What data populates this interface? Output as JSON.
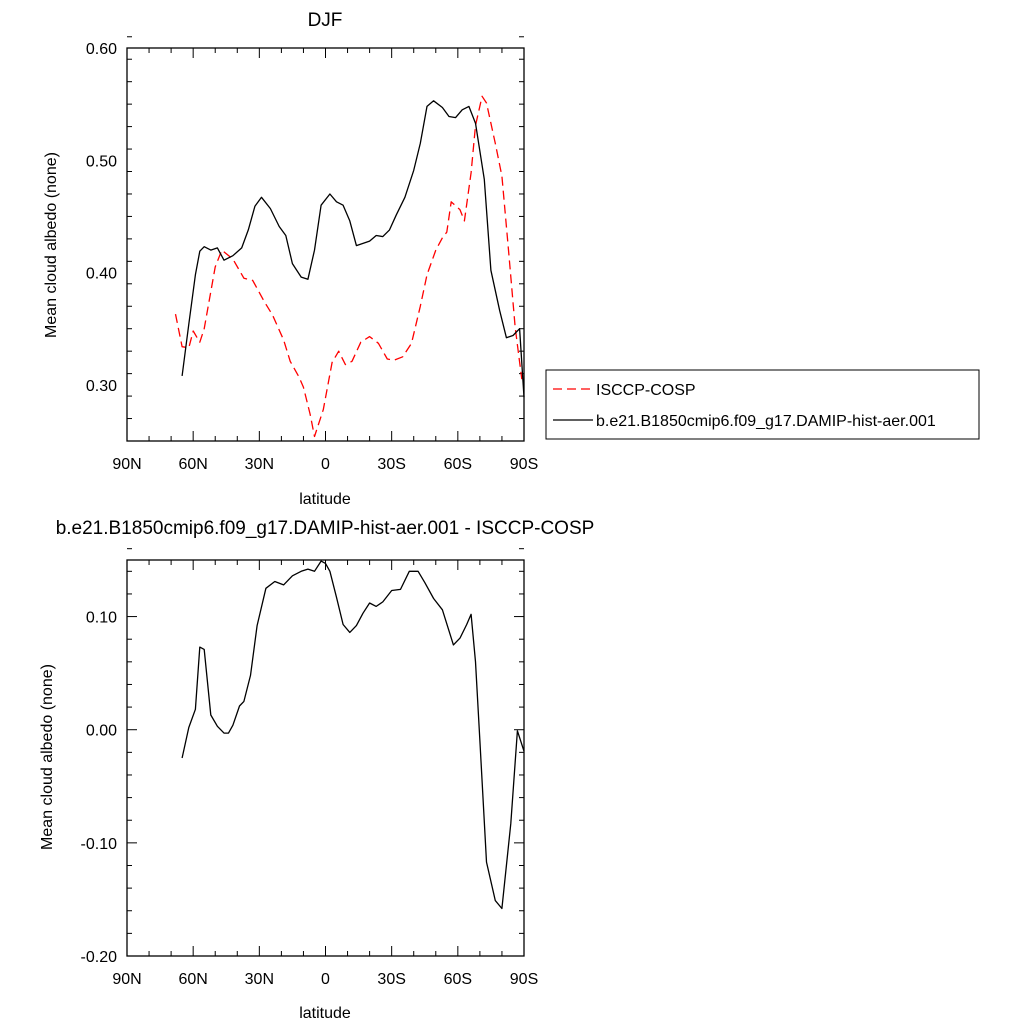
{
  "chart_data": [
    {
      "type": "line",
      "title": "DJF",
      "xlabel": "latitude",
      "ylabel": "Mean cloud albedo (none)",
      "xlim": [
        90,
        -90
      ],
      "ylim": [
        0.25,
        0.6
      ],
      "x_ticks": [
        {
          "value": 90,
          "label": "90N"
        },
        {
          "value": 60,
          "label": "60N"
        },
        {
          "value": 30,
          "label": "30N"
        },
        {
          "value": 0,
          "label": "0"
        },
        {
          "value": -30,
          "label": "30S"
        },
        {
          "value": -60,
          "label": "60S"
        },
        {
          "value": -90,
          "label": "90S"
        }
      ],
      "y_ticks": [
        {
          "value": 0.6,
          "label": "0.60"
        },
        {
          "value": 0.5,
          "label": "0.50"
        },
        {
          "value": 0.4,
          "label": "0.40"
        },
        {
          "value": 0.3,
          "label": "0.30"
        }
      ],
      "legend": "right",
      "series": [
        {
          "name": "ISCCP-COSP",
          "color": "#ff0000",
          "style": "dashed",
          "x": [
            68,
            65,
            62,
            60,
            57,
            55,
            50,
            47,
            42,
            37,
            33,
            28,
            24,
            19,
            16,
            12,
            10,
            7,
            5,
            1,
            -3,
            -6,
            -9,
            -12,
            -16,
            -20,
            -24,
            -28,
            -31,
            -35,
            -39,
            -43,
            -46,
            -50,
            -53,
            -55,
            -57,
            -61,
            -63,
            -66,
            -68,
            -71,
            -73,
            -77,
            -80,
            -83,
            -86,
            -89
          ],
          "y": [
            0.363,
            0.334,
            0.333,
            0.348,
            0.338,
            0.35,
            0.405,
            0.42,
            0.412,
            0.395,
            0.393,
            0.375,
            0.362,
            0.34,
            0.321,
            0.307,
            0.298,
            0.274,
            0.254,
            0.278,
            0.32,
            0.33,
            0.318,
            0.321,
            0.338,
            0.343,
            0.337,
            0.323,
            0.322,
            0.325,
            0.337,
            0.37,
            0.398,
            0.42,
            0.431,
            0.436,
            0.463,
            0.456,
            0.446,
            0.489,
            0.531,
            0.557,
            0.551,
            0.515,
            0.486,
            0.419,
            0.351,
            0.305
          ]
        },
        {
          "name": "b.e21.B1850cmip6.f09_g17.DAMIP-hist-aer.001",
          "color": "#000000",
          "style": "solid",
          "x": [
            65,
            62,
            59,
            57,
            55,
            52,
            49,
            46,
            42,
            38,
            35,
            32,
            29,
            25,
            21,
            18,
            15,
            11,
            8,
            5,
            2,
            -2,
            -5,
            -8,
            -11,
            -14,
            -17,
            -20,
            -23,
            -26,
            -29,
            -32,
            -36,
            -40,
            -43,
            -46,
            -49,
            -53,
            -56,
            -59,
            -62,
            -65,
            -68,
            -72,
            -75,
            -79,
            -82,
            -85,
            -88,
            -90
          ],
          "y": [
            0.308,
            0.354,
            0.398,
            0.419,
            0.423,
            0.42,
            0.422,
            0.411,
            0.415,
            0.422,
            0.438,
            0.459,
            0.467,
            0.457,
            0.441,
            0.433,
            0.408,
            0.396,
            0.394,
            0.42,
            0.46,
            0.47,
            0.463,
            0.46,
            0.446,
            0.424,
            0.426,
            0.428,
            0.433,
            0.432,
            0.438,
            0.451,
            0.467,
            0.491,
            0.515,
            0.548,
            0.553,
            0.547,
            0.539,
            0.538,
            0.545,
            0.548,
            0.533,
            0.483,
            0.402,
            0.366,
            0.342,
            0.344,
            0.35,
            0.289
          ]
        }
      ]
    },
    {
      "type": "line",
      "title": "b.e21.B1850cmip6.f09_g17.DAMIP-hist-aer.001 - ISCCP-COSP",
      "xlabel": "latitude",
      "ylabel": "Mean cloud albedo (none)",
      "xlim": [
        90,
        -90
      ],
      "ylim": [
        -0.2,
        0.15
      ],
      "x_ticks": [
        {
          "value": 90,
          "label": "90N"
        },
        {
          "value": 60,
          "label": "60N"
        },
        {
          "value": 30,
          "label": "30N"
        },
        {
          "value": 0,
          "label": "0"
        },
        {
          "value": -30,
          "label": "30S"
        },
        {
          "value": -60,
          "label": "60S"
        },
        {
          "value": -90,
          "label": "90S"
        }
      ],
      "y_ticks": [
        {
          "value": 0.1,
          "label": "0.10"
        },
        {
          "value": 0.0,
          "label": "0.00"
        },
        {
          "value": -0.1,
          "label": "-0.10"
        },
        {
          "value": -0.2,
          "label": "-0.20"
        }
      ],
      "series": [
        {
          "color": "#000000",
          "style": "solid",
          "x": [
            65,
            62,
            59,
            57,
            55,
            52,
            49,
            46,
            44,
            42,
            39,
            37,
            34,
            31,
            27,
            23,
            19,
            15,
            11,
            8,
            5,
            2,
            0,
            -2,
            -5,
            -8,
            -11,
            -14,
            -17,
            -20,
            -23,
            -26,
            -30,
            -34,
            -38,
            -42,
            -45,
            -49,
            -53,
            -58,
            -61,
            -64,
            -66,
            -68,
            -70,
            -73,
            -77,
            -80,
            -84,
            -87,
            -90
          ],
          "y": [
            -0.025,
            0.002,
            0.018,
            0.073,
            0.071,
            0.013,
            0.003,
            -0.003,
            -0.003,
            0.004,
            0.021,
            0.025,
            0.048,
            0.092,
            0.125,
            0.131,
            0.128,
            0.136,
            0.14,
            0.142,
            0.14,
            0.149,
            0.147,
            0.14,
            0.117,
            0.093,
            0.086,
            0.092,
            0.103,
            0.112,
            0.109,
            0.113,
            0.123,
            0.124,
            0.14,
            0.14,
            0.13,
            0.116,
            0.106,
            0.075,
            0.081,
            0.093,
            0.102,
            0.06,
            -0.01,
            -0.117,
            -0.151,
            -0.158,
            -0.083,
            -0.001,
            -0.019
          ]
        }
      ]
    }
  ]
}
